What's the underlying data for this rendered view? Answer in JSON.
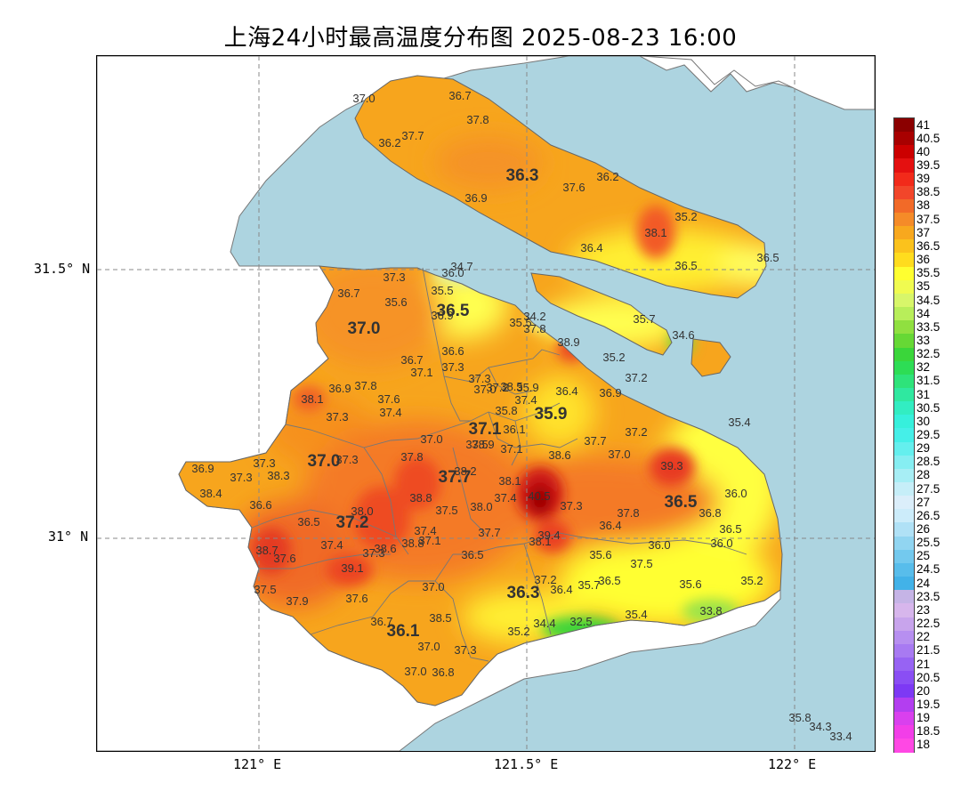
{
  "title": "上海24小时最高温度分布图 2025-08-23 16:00",
  "axes": {
    "x_ticks": [
      "121° E",
      "121.5° E",
      "122° E"
    ],
    "y_ticks": [
      "31.5° N",
      "31° N"
    ]
  },
  "colors": {
    "sea": "#add4e0",
    "land": "#ffffff",
    "base_heat": "#f7a51d"
  },
  "colorbar": {
    "labels": [
      "41",
      "40.5",
      "40",
      "39.5",
      "39",
      "38.5",
      "38",
      "37.5",
      "37",
      "36.5",
      "36",
      "35.5",
      "35",
      "34.5",
      "34",
      "33.5",
      "33",
      "32.5",
      "32",
      "31.5",
      "31",
      "30.5",
      "30",
      "29.5",
      "29",
      "28.5",
      "28",
      "27.5",
      "27",
      "26.5",
      "26",
      "25.5",
      "25",
      "24.5",
      "24",
      "23.5",
      "23",
      "22.5",
      "22",
      "21.5",
      "21",
      "20.5",
      "20",
      "19.5",
      "19",
      "18.5",
      "18"
    ],
    "colors": [
      "#8b0000",
      "#a80000",
      "#cc0000",
      "#e41010",
      "#f22a1a",
      "#f2462a",
      "#f26a28",
      "#f58b28",
      "#f8a81e",
      "#fbc21c",
      "#ffdc1e",
      "#ffff30",
      "#f0fb50",
      "#d8f66a",
      "#b8ee5a",
      "#90e040",
      "#66d835",
      "#3ad63a",
      "#2ddd55",
      "#2ee37a",
      "#2fe8a0",
      "#32edc2",
      "#36f0dc",
      "#45efe8",
      "#64efee",
      "#86eef2",
      "#a7eef5",
      "#c6eef8",
      "#dbeefa",
      "#ccecfa",
      "#b0e1f6",
      "#91d5f1",
      "#73c9ee",
      "#58bdeb",
      "#42b2e8",
      "#c5b4e6",
      "#d7b6ec",
      "#c8a4ec",
      "#b78ff0",
      "#a87af2",
      "#9763f3",
      "#8a4ef4",
      "#7d39f4",
      "#b33ef0",
      "#d940ee",
      "#f23ee8",
      "#ff48e4"
    ]
  },
  "stations": [
    {
      "v": "37.0",
      "x": 300,
      "y": 52
    },
    {
      "v": "36.7",
      "x": 408,
      "y": 49
    },
    {
      "v": "37.8",
      "x": 428,
      "y": 76
    },
    {
      "v": "37.7",
      "x": 355,
      "y": 94
    },
    {
      "v": "36.2",
      "x": 329,
      "y": 102
    },
    {
      "v": "36.9",
      "x": 426,
      "y": 164
    },
    {
      "v": "37.6",
      "x": 536,
      "y": 152
    },
    {
      "v": "36.2",
      "x": 574,
      "y": 140
    },
    {
      "v": "35.2",
      "x": 662,
      "y": 185
    },
    {
      "v": "38.1",
      "x": 628,
      "y": 203
    },
    {
      "v": "36.4",
      "x": 556,
      "y": 220
    },
    {
      "v": "36.5",
      "x": 662,
      "y": 240
    },
    {
      "v": "36.5",
      "x": 754,
      "y": 231
    },
    {
      "v": "34.7",
      "x": 410,
      "y": 241
    },
    {
      "v": "36.0",
      "x": 400,
      "y": 248
    },
    {
      "v": "37.3",
      "x": 334,
      "y": 253
    },
    {
      "v": "35.5",
      "x": 388,
      "y": 268
    },
    {
      "v": "36.7",
      "x": 283,
      "y": 271
    },
    {
      "v": "35.6",
      "x": 336,
      "y": 281
    },
    {
      "v": "36.9",
      "x": 388,
      "y": 296
    },
    {
      "v": "35.5",
      "x": 476,
      "y": 304
    },
    {
      "v": "34.2",
      "x": 492,
      "y": 297
    },
    {
      "v": "37.8",
      "x": 492,
      "y": 311
    },
    {
      "v": "35.7",
      "x": 615,
      "y": 300
    },
    {
      "v": "34.6",
      "x": 659,
      "y": 318
    },
    {
      "v": "38.9",
      "x": 530,
      "y": 326
    },
    {
      "v": "36.6",
      "x": 400,
      "y": 336
    },
    {
      "v": "36.7",
      "x": 354,
      "y": 346
    },
    {
      "v": "35.2",
      "x": 581,
      "y": 343
    },
    {
      "v": "37.3",
      "x": 400,
      "y": 354
    },
    {
      "v": "37.1",
      "x": 365,
      "y": 360
    },
    {
      "v": "37.2",
      "x": 606,
      "y": 366
    },
    {
      "v": "37.3",
      "x": 430,
      "y": 367
    },
    {
      "v": "36.9",
      "x": 273,
      "y": 378
    },
    {
      "v": "37.8",
      "x": 302,
      "y": 375
    },
    {
      "v": "37.0",
      "x": 436,
      "y": 379
    },
    {
      "v": "37.2",
      "x": 450,
      "y": 377
    },
    {
      "v": "38.5",
      "x": 466,
      "y": 376
    },
    {
      "v": "35.9",
      "x": 484,
      "y": 377
    },
    {
      "v": "36.4",
      "x": 528,
      "y": 381
    },
    {
      "v": "36.9",
      "x": 577,
      "y": 383
    },
    {
      "v": "38.1",
      "x": 242,
      "y": 390
    },
    {
      "v": "37.6",
      "x": 328,
      "y": 390
    },
    {
      "v": "37.4",
      "x": 482,
      "y": 391
    },
    {
      "v": "37.4",
      "x": 330,
      "y": 405
    },
    {
      "v": "35.8",
      "x": 460,
      "y": 403
    },
    {
      "v": "37.3",
      "x": 270,
      "y": 410
    },
    {
      "v": "35.4",
      "x": 722,
      "y": 416
    },
    {
      "v": "36.1",
      "x": 469,
      "y": 424
    },
    {
      "v": "37.0",
      "x": 376,
      "y": 435
    },
    {
      "v": "37.7",
      "x": 560,
      "y": 437
    },
    {
      "v": "37.2",
      "x": 606,
      "y": 427
    },
    {
      "v": "37.5",
      "x": 427,
      "y": 441
    },
    {
      "v": "38.9",
      "x": 434,
      "y": 441
    },
    {
      "v": "37.1",
      "x": 466,
      "y": 446
    },
    {
      "v": "37.3",
      "x": 188,
      "y": 462
    },
    {
      "v": "37.3",
      "x": 281,
      "y": 458
    },
    {
      "v": "37.8",
      "x": 354,
      "y": 455
    },
    {
      "v": "38.6",
      "x": 520,
      "y": 453
    },
    {
      "v": "37.0",
      "x": 587,
      "y": 452
    },
    {
      "v": "39.3",
      "x": 646,
      "y": 465
    },
    {
      "v": "36.9",
      "x": 119,
      "y": 468
    },
    {
      "v": "38.3",
      "x": 204,
      "y": 476
    },
    {
      "v": "37.3",
      "x": 162,
      "y": 478
    },
    {
      "v": "38.2",
      "x": 414,
      "y": 471
    },
    {
      "v": "38.1",
      "x": 464,
      "y": 482
    },
    {
      "v": "38.4",
      "x": 128,
      "y": 496
    },
    {
      "v": "38.8",
      "x": 364,
      "y": 501
    },
    {
      "v": "37.4",
      "x": 459,
      "y": 501
    },
    {
      "v": "40.5",
      "x": 497,
      "y": 499
    },
    {
      "v": "36.0",
      "x": 718,
      "y": 496
    },
    {
      "v": "36.6",
      "x": 184,
      "y": 509
    },
    {
      "v": "38.0",
      "x": 298,
      "y": 516
    },
    {
      "v": "37.5",
      "x": 393,
      "y": 515
    },
    {
      "v": "38.0",
      "x": 432,
      "y": 511
    },
    {
      "v": "37.3",
      "x": 533,
      "y": 510
    },
    {
      "v": "37.8",
      "x": 597,
      "y": 518
    },
    {
      "v": "36.8",
      "x": 689,
      "y": 518
    },
    {
      "v": "36.5",
      "x": 238,
      "y": 528
    },
    {
      "v": "36.4",
      "x": 577,
      "y": 532
    },
    {
      "v": "37.4",
      "x": 369,
      "y": 538
    },
    {
      "v": "37.7",
      "x": 441,
      "y": 540
    },
    {
      "v": "39.4",
      "x": 508,
      "y": 543
    },
    {
      "v": "36.5",
      "x": 712,
      "y": 536
    },
    {
      "v": "38.8",
      "x": 355,
      "y": 552
    },
    {
      "v": "37.1",
      "x": 374,
      "y": 549
    },
    {
      "v": "38.1",
      "x": 498,
      "y": 550
    },
    {
      "v": "37.4",
      "x": 264,
      "y": 554
    },
    {
      "v": "38.6",
      "x": 324,
      "y": 558
    },
    {
      "v": "37.3",
      "x": 311,
      "y": 563
    },
    {
      "v": "36.0",
      "x": 632,
      "y": 554
    },
    {
      "v": "36.0",
      "x": 702,
      "y": 552
    },
    {
      "v": "38.7",
      "x": 191,
      "y": 560
    },
    {
      "v": "37.6",
      "x": 211,
      "y": 569
    },
    {
      "v": "35.6",
      "x": 566,
      "y": 565
    },
    {
      "v": "36.5",
      "x": 422,
      "y": 565
    },
    {
      "v": "37.5",
      "x": 612,
      "y": 575
    },
    {
      "v": "39.1",
      "x": 287,
      "y": 580
    },
    {
      "v": "37.2",
      "x": 504,
      "y": 593
    },
    {
      "v": "36.5",
      "x": 576,
      "y": 594
    },
    {
      "v": "37.0",
      "x": 378,
      "y": 601
    },
    {
      "v": "36.4",
      "x": 522,
      "y": 604
    },
    {
      "v": "35.7",
      "x": 553,
      "y": 599
    },
    {
      "v": "35.6",
      "x": 667,
      "y": 598
    },
    {
      "v": "35.2",
      "x": 736,
      "y": 594
    },
    {
      "v": "37.5",
      "x": 189,
      "y": 604
    },
    {
      "v": "37.9",
      "x": 225,
      "y": 617
    },
    {
      "v": "37.6",
      "x": 292,
      "y": 614
    },
    {
      "v": "35.4",
      "x": 606,
      "y": 632
    },
    {
      "v": "33.8",
      "x": 690,
      "y": 628
    },
    {
      "v": "38.5",
      "x": 386,
      "y": 636
    },
    {
      "v": "36.7",
      "x": 320,
      "y": 640
    },
    {
      "v": "34.4",
      "x": 503,
      "y": 642
    },
    {
      "v": "32.5",
      "x": 544,
      "y": 640
    },
    {
      "v": "35.2",
      "x": 474,
      "y": 651
    },
    {
      "v": "37.0",
      "x": 373,
      "y": 668
    },
    {
      "v": "37.3",
      "x": 414,
      "y": 672
    },
    {
      "v": "37.0",
      "x": 358,
      "y": 696
    },
    {
      "v": "36.8",
      "x": 389,
      "y": 697
    },
    {
      "v": "35.8",
      "x": 790,
      "y": 748
    },
    {
      "v": "34.3",
      "x": 813,
      "y": 758
    },
    {
      "v": "33.4",
      "x": 836,
      "y": 769
    }
  ],
  "district_values": [
    {
      "v": "36.3",
      "x": 478,
      "y": 140
    },
    {
      "v": "36.5",
      "x": 400,
      "y": 292
    },
    {
      "v": "37.0",
      "x": 300,
      "y": 312
    },
    {
      "v": "35.9",
      "x": 510,
      "y": 408
    },
    {
      "v": "37.1",
      "x": 436,
      "y": 425
    },
    {
      "v": "37.0",
      "x": 255,
      "y": 461
    },
    {
      "v": "37.7",
      "x": 402,
      "y": 479
    },
    {
      "v": "36.5",
      "x": 656,
      "y": 507
    },
    {
      "v": "37.2",
      "x": 287,
      "y": 530
    },
    {
      "v": "36.3",
      "x": 479,
      "y": 609
    },
    {
      "v": "36.1",
      "x": 344,
      "y": 652
    }
  ]
}
